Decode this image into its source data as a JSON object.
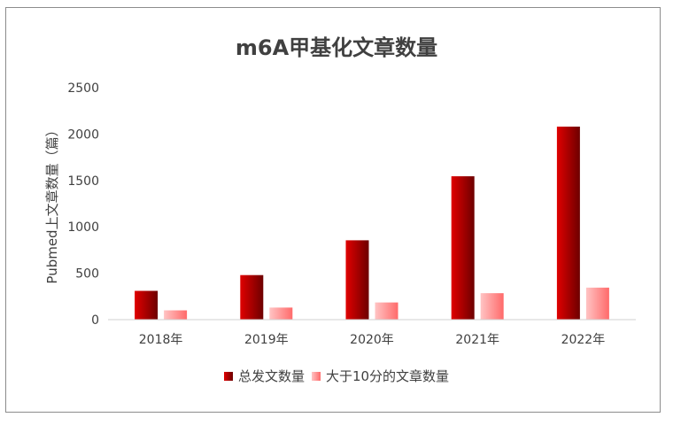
{
  "chart_data": {
    "type": "bar",
    "title": "m6A甲基化文章数量",
    "ylabel": "Pubmed上文章数量（篇）",
    "categories": [
      "2018年",
      "2019年",
      "2020年",
      "2021年",
      "2022年"
    ],
    "ylim": [
      0,
      2500
    ],
    "yticks": [
      "0",
      "500",
      "1000",
      "1500",
      "2000",
      "2500"
    ],
    "grid": false,
    "legend_position": "bottom",
    "series": [
      {
        "name": "总发文数量",
        "values": [
          310,
          480,
          855,
          1545,
          2080
        ],
        "color": "#c00000"
      },
      {
        "name": "大于10分的文章数量",
        "values": [
          100,
          130,
          185,
          285,
          345
        ],
        "color": "#ff8a8a"
      }
    ]
  }
}
